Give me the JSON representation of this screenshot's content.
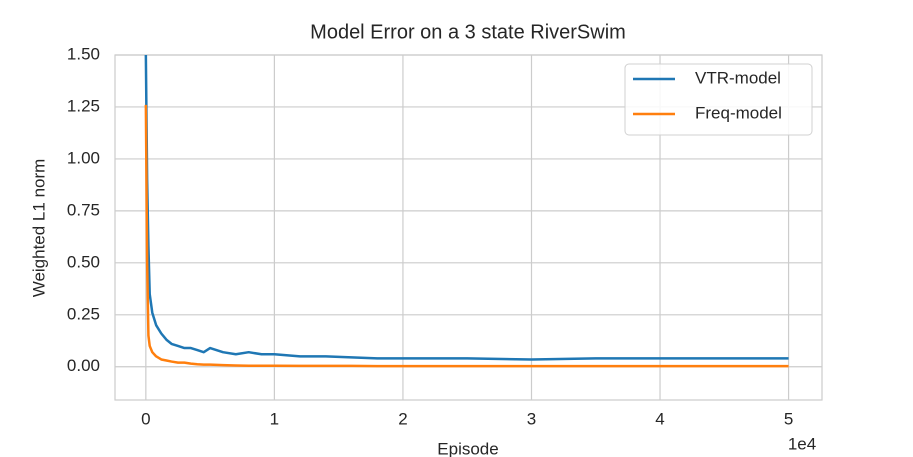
{
  "chart_data": {
    "type": "line",
    "title": "Model Error on a 3 state RiverSwim",
    "x_label": "Episode",
    "y_label": "Weighted L1 norm",
    "x_offset_label": "1e4",
    "x": [
      0,
      100,
      200,
      300,
      500,
      800,
      1200,
      1600,
      2000,
      2500,
      3000,
      3500,
      4000,
      4500,
      5000,
      6000,
      7000,
      8000,
      9000,
      10000,
      12000,
      14000,
      16000,
      18000,
      20000,
      25000,
      30000,
      35000,
      40000,
      45000,
      50000
    ],
    "series": [
      {
        "name": "VTR-model",
        "color": "#1f77b4",
        "values": [
          1.5,
          0.9,
          0.58,
          0.35,
          0.26,
          0.2,
          0.16,
          0.13,
          0.11,
          0.1,
          0.09,
          0.09,
          0.08,
          0.07,
          0.09,
          0.07,
          0.06,
          0.07,
          0.06,
          0.06,
          0.05,
          0.05,
          0.045,
          0.04,
          0.04,
          0.04,
          0.035,
          0.04,
          0.04,
          0.04,
          0.04
        ]
      },
      {
        "name": "Freq-model",
        "color": "#ff7f0e",
        "values": [
          1.26,
          0.5,
          0.15,
          0.1,
          0.07,
          0.05,
          0.035,
          0.03,
          0.025,
          0.02,
          0.02,
          0.015,
          0.012,
          0.01,
          0.01,
          0.008,
          0.006,
          0.005,
          0.005,
          0.005,
          0.004,
          0.004,
          0.004,
          0.003,
          0.003,
          0.003,
          0.003,
          0.003,
          0.003,
          0.003,
          0.003
        ]
      }
    ],
    "xlim": [
      -2400,
      52600
    ],
    "xticks": [
      0,
      {
        "value": 10000,
        "label": "1"
      },
      {
        "value": 20000,
        "label": "2"
      },
      {
        "value": 30000,
        "label": "3"
      },
      {
        "value": 40000,
        "label": "4"
      },
      {
        "value": 50000,
        "label": "5"
      }
    ],
    "ylim": [
      -0.16,
      1.5
    ],
    "yticks": [
      {
        "value": 0,
        "label": "0.00"
      },
      0.25,
      {
        "value": 0.5,
        "label": "0.50"
      },
      0.75,
      {
        "value": 1,
        "label": "1.00"
      },
      1.25,
      {
        "value": 1.5,
        "label": "1.50"
      }
    ],
    "grid": true,
    "legend": "upper right"
  }
}
